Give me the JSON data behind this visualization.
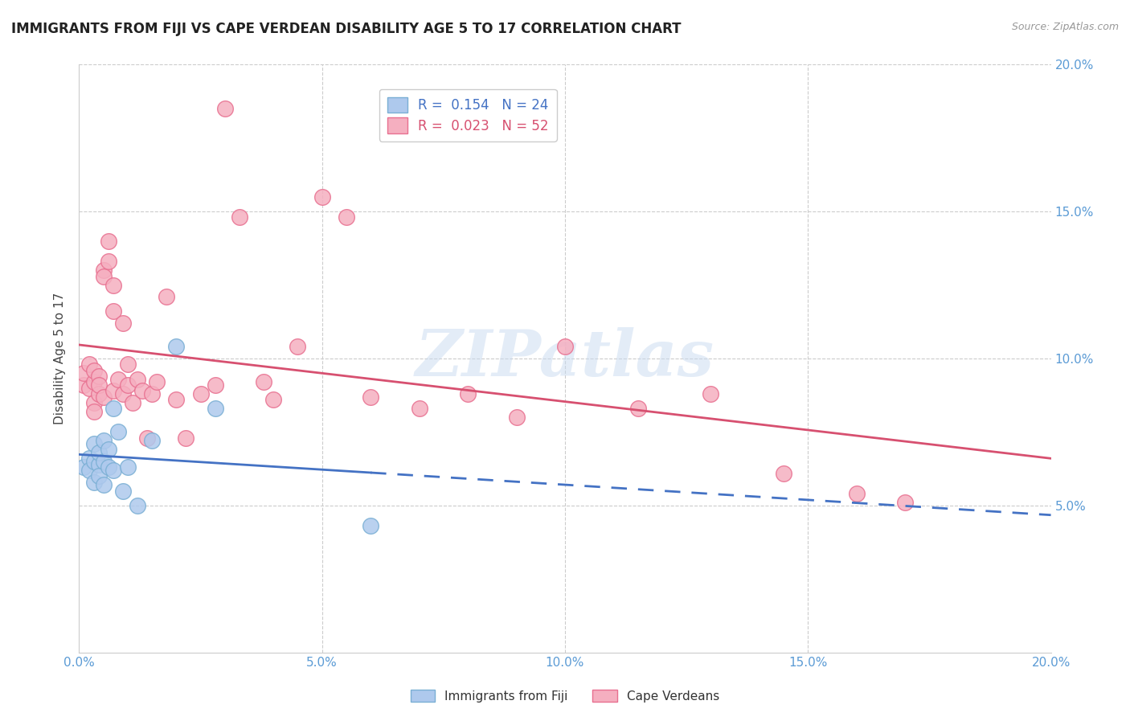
{
  "title": "IMMIGRANTS FROM FIJI VS CAPE VERDEAN DISABILITY AGE 5 TO 17 CORRELATION CHART",
  "source": "Source: ZipAtlas.com",
  "xlabel": "",
  "ylabel": "Disability Age 5 to 17",
  "xlim": [
    0.0,
    0.2
  ],
  "ylim": [
    0.0,
    0.2
  ],
  "xticks": [
    0.0,
    0.05,
    0.1,
    0.15,
    0.2
  ],
  "yticks": [
    0.05,
    0.1,
    0.15,
    0.2
  ],
  "xtick_labels": [
    "0.0%",
    "5.0%",
    "10.0%",
    "15.0%",
    "20.0%"
  ],
  "ytick_labels": [
    "5.0%",
    "10.0%",
    "15.0%",
    "20.0%"
  ],
  "background_color": "#ffffff",
  "watermark": "ZIPatlas",
  "fiji_color": "#aec9ed",
  "fiji_edge_color": "#7aafd4",
  "cape_color": "#f5afc0",
  "cape_edge_color": "#e87090",
  "fiji_R": 0.154,
  "fiji_N": 24,
  "cape_R": 0.023,
  "cape_N": 52,
  "fiji_line_color": "#4472c4",
  "cape_line_color": "#d75070",
  "fiji_points_x": [
    0.001,
    0.002,
    0.002,
    0.003,
    0.003,
    0.003,
    0.004,
    0.004,
    0.004,
    0.005,
    0.005,
    0.005,
    0.006,
    0.006,
    0.007,
    0.007,
    0.008,
    0.009,
    0.01,
    0.012,
    0.015,
    0.02,
    0.028,
    0.06
  ],
  "fiji_points_y": [
    0.063,
    0.066,
    0.062,
    0.065,
    0.058,
    0.071,
    0.064,
    0.068,
    0.06,
    0.065,
    0.057,
    0.072,
    0.063,
    0.069,
    0.062,
    0.083,
    0.075,
    0.055,
    0.063,
    0.05,
    0.072,
    0.104,
    0.083,
    0.043
  ],
  "cape_points_x": [
    0.001,
    0.001,
    0.002,
    0.002,
    0.003,
    0.003,
    0.003,
    0.003,
    0.004,
    0.004,
    0.004,
    0.005,
    0.005,
    0.005,
    0.006,
    0.006,
    0.007,
    0.007,
    0.007,
    0.008,
    0.009,
    0.009,
    0.01,
    0.01,
    0.011,
    0.012,
    0.013,
    0.014,
    0.015,
    0.016,
    0.018,
    0.02,
    0.022,
    0.025,
    0.028,
    0.03,
    0.033,
    0.038,
    0.04,
    0.045,
    0.05,
    0.055,
    0.06,
    0.07,
    0.08,
    0.09,
    0.1,
    0.115,
    0.13,
    0.145,
    0.16,
    0.17
  ],
  "cape_points_y": [
    0.091,
    0.095,
    0.09,
    0.098,
    0.085,
    0.092,
    0.096,
    0.082,
    0.088,
    0.094,
    0.091,
    0.13,
    0.128,
    0.087,
    0.14,
    0.133,
    0.125,
    0.116,
    0.089,
    0.093,
    0.112,
    0.088,
    0.091,
    0.098,
    0.085,
    0.093,
    0.089,
    0.073,
    0.088,
    0.092,
    0.121,
    0.086,
    0.073,
    0.088,
    0.091,
    0.185,
    0.148,
    0.092,
    0.086,
    0.104,
    0.155,
    0.148,
    0.087,
    0.083,
    0.088,
    0.08,
    0.104,
    0.083,
    0.088,
    0.061,
    0.054,
    0.051
  ],
  "legend_fiji_color": "#aec9ed",
  "legend_cape_color": "#f5afc0",
  "legend_fiji_label": "Immigrants from Fiji",
  "legend_cape_label": "Cape Verdeans",
  "grid_color": "#cccccc",
  "right_axis_color": "#5b9bd5",
  "bottom_label_color": "#5b9bd5"
}
